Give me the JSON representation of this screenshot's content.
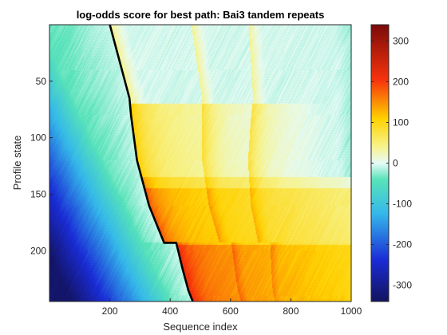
{
  "chart_data": {
    "type": "heatmap",
    "title": "log-odds score for best path: Bai3 tandem repeats",
    "xlabel": "Sequence index",
    "ylabel": "Profile state",
    "xlim": [
      0,
      1000
    ],
    "ylim": [
      0,
      245
    ],
    "y_reversed": true,
    "x_ticks": [
      200,
      400,
      600,
      800,
      1000
    ],
    "y_ticks": [
      50,
      100,
      150,
      200
    ],
    "colorbar": {
      "colormap": "jet",
      "range": [
        -340,
        340
      ],
      "ticks": [
        300,
        200,
        100,
        0,
        -100,
        -200,
        -300
      ]
    },
    "best_path": {
      "color": "#000000",
      "x": [
        200,
        265,
        270,
        290,
        330,
        380,
        395,
        420,
        440,
        460,
        475
      ],
      "y": [
        0,
        65,
        80,
        120,
        160,
        193,
        193,
        193,
        215,
        235,
        245
      ]
    },
    "grid": false,
    "legend": "none"
  }
}
